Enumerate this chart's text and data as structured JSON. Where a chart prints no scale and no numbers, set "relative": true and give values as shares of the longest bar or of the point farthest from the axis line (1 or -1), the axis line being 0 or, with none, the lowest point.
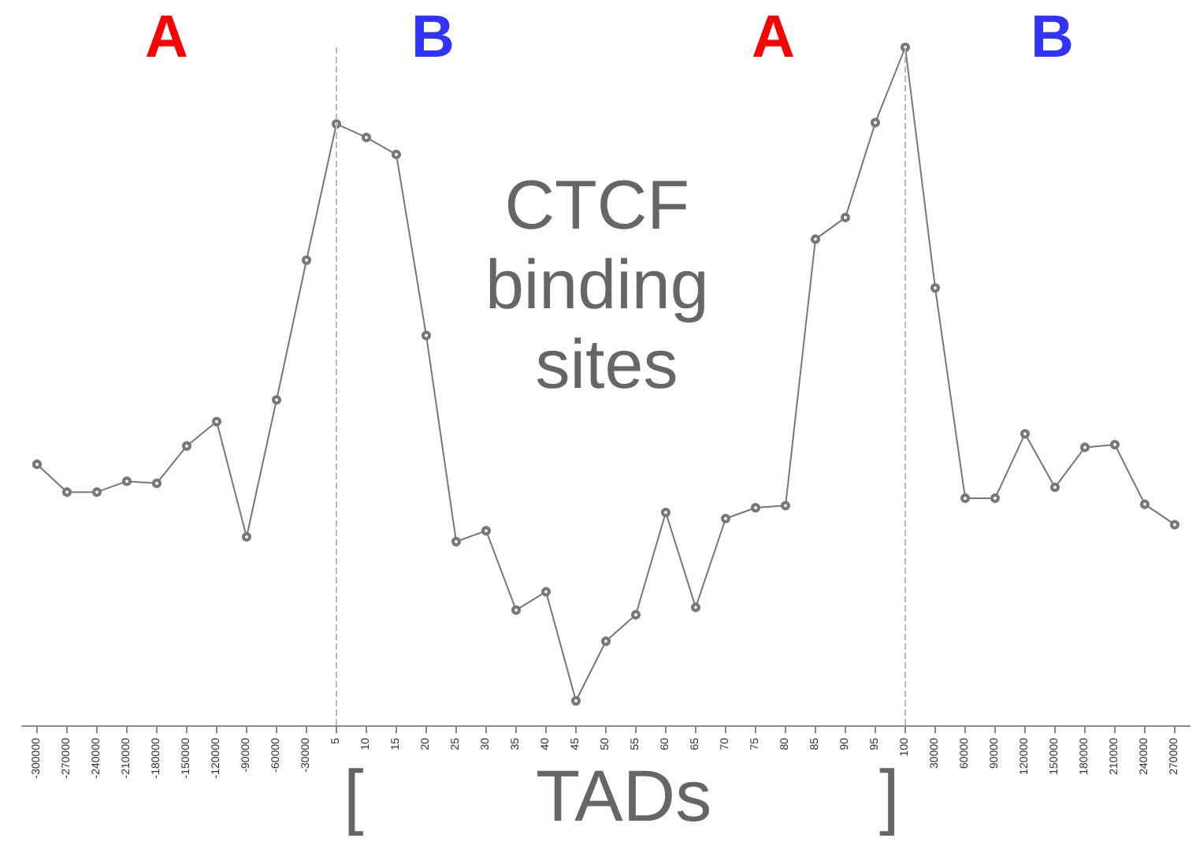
{
  "chart_data": {
    "type": "line",
    "relative": true,
    "marker": "circle",
    "line_style": "solid",
    "categories": [
      "-300000",
      "-270000",
      "-240000",
      "-210000",
      "-180000",
      "-150000",
      "-120000",
      "-90000",
      "-60000",
      "-30000",
      "5",
      "10",
      "15",
      "20",
      "25",
      "30",
      "35",
      "40",
      "45",
      "50",
      "55",
      "60",
      "65",
      "70",
      "75",
      "80",
      "85",
      "90",
      "95",
      "100",
      "30000",
      "60000",
      "90000",
      "120000",
      "150000",
      "180000",
      "210000",
      "240000",
      "270000"
    ],
    "series": [
      {
        "color": "#777777",
        "values": [
          0.385,
          0.344,
          0.344,
          0.36,
          0.357,
          0.412,
          0.448,
          0.278,
          0.48,
          0.686,
          0.887,
          0.867,
          0.842,
          0.575,
          0.271,
          0.287,
          0.17,
          0.197,
          0.036,
          0.124,
          0.163,
          0.314,
          0.174,
          0.305,
          0.321,
          0.324,
          0.717,
          0.749,
          0.889,
          1,
          0.645,
          0.335,
          0.335,
          0.43,
          0.351,
          0.41,
          0.414,
          0.326,
          0.296
        ]
      }
    ],
    "ref_lines": [
      {
        "axis": "x",
        "value": "5",
        "color": "#bbbbbb",
        "line_style": "dashed"
      },
      {
        "axis": "x",
        "value": "100",
        "color": "#bbbbbb",
        "line_style": "dashed"
      }
    ],
    "annotations": [
      "A",
      "B",
      "A",
      "B",
      "CTCF binding sites",
      "[",
      "TADs",
      "]"
    ]
  }
}
